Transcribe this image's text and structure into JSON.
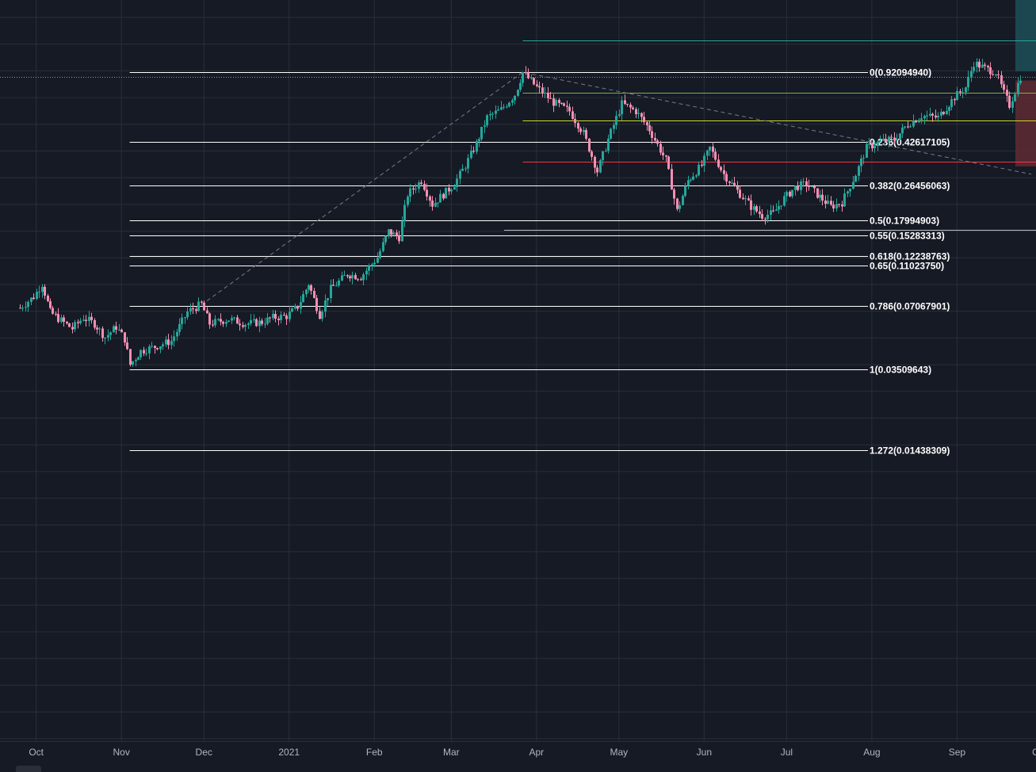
{
  "colors": {
    "background": "#161a25",
    "grid": "#2a2e39",
    "up": "#26a69a",
    "down": "#f48fb1",
    "fib_line": "#ffffff",
    "trend_line": "#787b86",
    "target_line": "#26a69a",
    "stop_line": "#f23645",
    "entry_line": "#c6d82b",
    "target_zone": "#1e4d55",
    "stop_zone": "#5b2a33"
  },
  "x_axis": {
    "labels": [
      "Oct",
      "Nov",
      "Dec",
      "2021",
      "Feb",
      "Mar",
      "Apr",
      "May",
      "Jun",
      "Jul",
      "Aug",
      "Sep",
      "Oct"
    ]
  },
  "chart_data": {
    "type": "candlestick",
    "title": "",
    "y_scale": "log",
    "grid": true,
    "x_range": [
      "2020-09-25",
      "2021-09-28"
    ],
    "y_range_approx": [
      0.011,
      1.5
    ],
    "fib_levels": [
      {
        "level": "0",
        "value": 0.9209494,
        "label": "0(0.92094940)"
      },
      {
        "level": "0.236",
        "value": 0.42617105,
        "label": "0.236(0.42617105)"
      },
      {
        "level": "0.382",
        "value": 0.26456063,
        "label": "0.382(0.26456063)"
      },
      {
        "level": "0.5",
        "value": 0.17994903,
        "label": "0.5(0.17994903)"
      },
      {
        "level": "0.55",
        "value": 0.15283313,
        "label": "0.55(0.15283313)"
      },
      {
        "level": "0.618",
        "value": 0.12238763,
        "label": "0.618(0.12238763)"
      },
      {
        "level": "0.65",
        "value": 0.1102375,
        "label": "0.65(0.11023750)"
      },
      {
        "level": "0.786",
        "value": 0.07067901,
        "label": "0.786(0.07067901)"
      },
      {
        "level": "1",
        "value": 0.03509643,
        "label": "1(0.03509643)"
      },
      {
        "level": "1.272",
        "value": 0.01438309,
        "label": "1.272(0.01438309)"
      }
    ],
    "fib_range": {
      "start": "2020-11-04",
      "end": "2021-09-06"
    },
    "trend_line": {
      "points": [
        [
          "2020-11-30",
          0.0712
        ],
        [
          "2021-03-27",
          0.92
        ],
        [
          "2021-09-28",
          0.3
        ]
      ]
    },
    "position": {
      "target": 1.3,
      "entry": 0.54,
      "stop": 0.345,
      "start": "2021-03-27",
      "end": "2021-09-28"
    },
    "current_price_approx": 0.875,
    "price_path": [
      [
        "2020-09-25",
        0.069
      ],
      [
        "2020-09-30",
        0.078
      ],
      [
        "2020-10-03",
        0.09
      ],
      [
        "2020-10-06",
        0.066
      ],
      [
        "2020-10-10",
        0.06
      ],
      [
        "2020-10-14",
        0.055
      ],
      [
        "2020-10-18",
        0.062
      ],
      [
        "2020-10-22",
        0.058
      ],
      [
        "2020-10-26",
        0.05
      ],
      [
        "2020-10-30",
        0.056
      ],
      [
        "2020-11-02",
        0.049
      ],
      [
        "2020-11-04",
        0.037
      ],
      [
        "2020-11-08",
        0.043
      ],
      [
        "2020-11-13",
        0.045
      ],
      [
        "2020-11-19",
        0.048
      ],
      [
        "2020-11-25",
        0.066
      ],
      [
        "2020-11-30",
        0.072
      ],
      [
        "2020-12-03",
        0.058
      ],
      [
        "2020-12-10",
        0.061
      ],
      [
        "2020-12-16",
        0.058
      ],
      [
        "2020-12-22",
        0.059
      ],
      [
        "2020-12-26",
        0.062
      ],
      [
        "2020-12-31",
        0.063
      ],
      [
        "2021-01-04",
        0.07
      ],
      [
        "2021-01-08",
        0.09
      ],
      [
        "2021-01-12",
        0.064
      ],
      [
        "2021-01-16",
        0.085
      ],
      [
        "2021-01-22",
        0.1
      ],
      [
        "2021-01-27",
        0.097
      ],
      [
        "2021-02-02",
        0.12
      ],
      [
        "2021-02-06",
        0.16
      ],
      [
        "2021-02-10",
        0.15
      ],
      [
        "2021-02-13",
        0.24
      ],
      [
        "2021-02-18",
        0.28
      ],
      [
        "2021-02-22",
        0.215
      ],
      [
        "2021-02-26",
        0.24
      ],
      [
        "2021-03-02",
        0.27
      ],
      [
        "2021-03-06",
        0.33
      ],
      [
        "2021-03-10",
        0.42
      ],
      [
        "2021-03-14",
        0.56
      ],
      [
        "2021-03-19",
        0.61
      ],
      [
        "2021-03-24",
        0.72
      ],
      [
        "2021-03-27",
        0.92
      ],
      [
        "2021-04-01",
        0.78
      ],
      [
        "2021-04-07",
        0.66
      ],
      [
        "2021-04-13",
        0.6
      ],
      [
        "2021-04-18",
        0.47
      ],
      [
        "2021-04-23",
        0.31
      ],
      [
        "2021-04-27",
        0.44
      ],
      [
        "2021-05-02",
        0.65
      ],
      [
        "2021-05-07",
        0.6
      ],
      [
        "2021-05-12",
        0.49
      ],
      [
        "2021-05-18",
        0.35
      ],
      [
        "2021-05-22",
        0.2
      ],
      [
        "2021-05-26",
        0.28
      ],
      [
        "2021-05-31",
        0.33
      ],
      [
        "2021-06-03",
        0.4
      ],
      [
        "2021-06-08",
        0.3
      ],
      [
        "2021-06-13",
        0.25
      ],
      [
        "2021-06-18",
        0.21
      ],
      [
        "2021-06-22",
        0.19
      ],
      [
        "2021-06-26",
        0.195
      ],
      [
        "2021-06-30",
        0.23
      ],
      [
        "2021-07-04",
        0.26
      ],
      [
        "2021-07-08",
        0.27
      ],
      [
        "2021-07-12",
        0.24
      ],
      [
        "2021-07-17",
        0.21
      ],
      [
        "2021-07-21",
        0.22
      ],
      [
        "2021-07-26",
        0.3
      ],
      [
        "2021-07-30",
        0.4
      ],
      [
        "2021-08-04",
        0.43
      ],
      [
        "2021-08-09",
        0.44
      ],
      [
        "2021-08-14",
        0.52
      ],
      [
        "2021-08-19",
        0.57
      ],
      [
        "2021-08-25",
        0.56
      ],
      [
        "2021-08-31",
        0.7
      ],
      [
        "2021-09-04",
        0.78
      ],
      [
        "2021-09-07",
        1.02
      ],
      [
        "2021-09-11",
        0.96
      ],
      [
        "2021-09-15",
        0.92
      ],
      [
        "2021-09-18",
        0.73
      ],
      [
        "2021-09-20",
        0.64
      ],
      [
        "2021-09-24",
        0.875
      ]
    ]
  }
}
